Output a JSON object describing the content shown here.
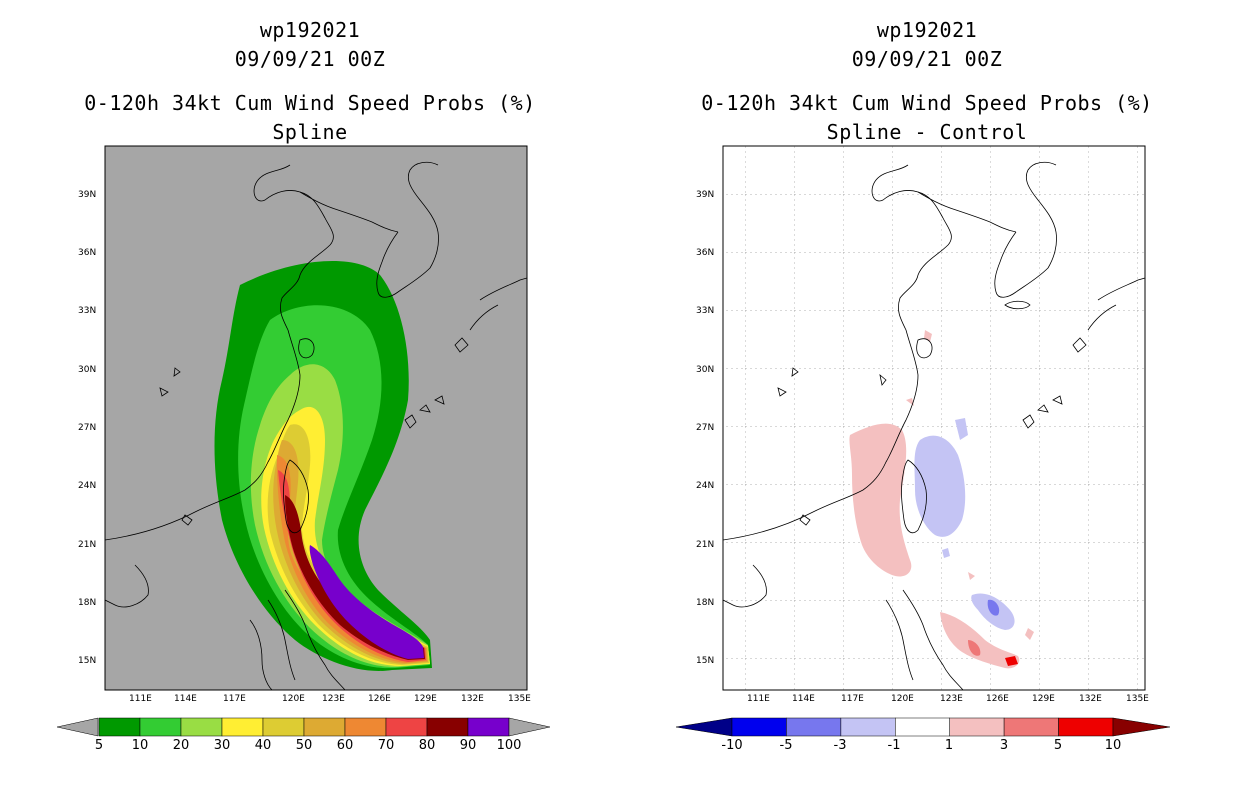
{
  "left_panel": {
    "title_storm": "wp192021",
    "title_date": "09/09/21 00Z",
    "title_product": "0-120h 34kt Cum Wind Speed Probs (%)",
    "title_sub": "Spline"
  },
  "right_panel": {
    "title_storm": "wp192021",
    "title_date": "09/09/21 00Z",
    "title_product": "0-120h 34kt Cum Wind Speed Probs (%)",
    "title_sub": "Spline - Control"
  },
  "axes": {
    "lat_labels": [
      "39N",
      "36N",
      "33N",
      "30N",
      "27N",
      "24N",
      "21N",
      "18N",
      "15N"
    ],
    "lon_labels": [
      "111E",
      "114E",
      "117E",
      "120E",
      "123E",
      "126E",
      "129E",
      "132E",
      "135E"
    ]
  },
  "left_colorbar": {
    "labels": [
      "5",
      "10",
      "20",
      "30",
      "40",
      "50",
      "60",
      "70",
      "80",
      "90",
      "100"
    ],
    "colors": [
      "#009900",
      "#33cc33",
      "#99dd44",
      "#ffee33",
      "#ddcc33",
      "#ddaa33",
      "#ee8833",
      "#ee4444",
      "#880000",
      "#7700cc"
    ],
    "under_color": "#a6a6a6",
    "over_color": "#a6a6a6"
  },
  "right_colorbar": {
    "labels": [
      "-10",
      "-5",
      "-3",
      "-1",
      "1",
      "3",
      "5",
      "10"
    ],
    "colors": [
      "#0000ee",
      "#7777ee",
      "#c4c4f4",
      "#ffffff",
      "#f4c0c0",
      "#ee7777",
      "#ee0000"
    ],
    "under_color": "#000088",
    "over_color": "#880000"
  },
  "colors": {
    "map_background_left": "#a6a6a6",
    "map_background_right": "#ffffff",
    "coastline": "#000000"
  }
}
